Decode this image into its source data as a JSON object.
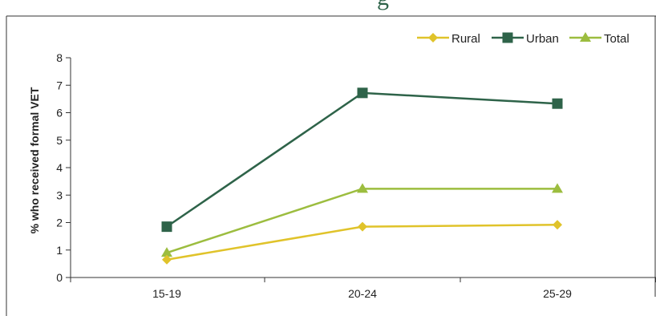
{
  "chart_data": {
    "type": "line",
    "title": "",
    "xlabel": "",
    "ylabel": "% who received formal VET",
    "categories": [
      "15-19",
      "20-24",
      "25-29"
    ],
    "ylim": [
      0,
      8
    ],
    "yticks": [
      0,
      1,
      2,
      3,
      4,
      5,
      6,
      7,
      8
    ],
    "grid": false,
    "legend_position": "top-right",
    "series": [
      {
        "name": "Rural",
        "values": [
          0.65,
          1.85,
          1.92
        ],
        "color": "#e0c32a",
        "marker": "diamond"
      },
      {
        "name": "Urban",
        "values": [
          1.85,
          6.72,
          6.33
        ],
        "color": "#2e6349",
        "marker": "square"
      },
      {
        "name": "Total",
        "values": [
          0.9,
          3.23,
          3.23
        ],
        "color": "#9cbd3f",
        "marker": "triangle"
      }
    ]
  }
}
